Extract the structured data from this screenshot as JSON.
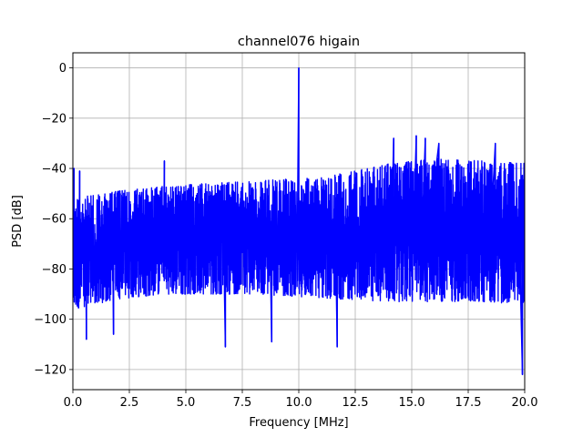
{
  "chart_data": {
    "type": "line",
    "title": "channel076 higain",
    "xlabel": "Frequency [MHz]",
    "ylabel": "PSD [dB]",
    "xlim": [
      0,
      20
    ],
    "ylim": [
      -128,
      6
    ],
    "xticks": [
      0,
      2.5,
      5,
      7.5,
      10,
      12.5,
      15,
      17.5,
      20
    ],
    "xtick_labels": [
      "0.0",
      "2.5",
      "5.0",
      "7.5",
      "10.0",
      "12.5",
      "15.0",
      "17.5",
      "20.0"
    ],
    "yticks": [
      0,
      -20,
      -40,
      -60,
      -80,
      -100,
      -120
    ],
    "ytick_labels": [
      "0",
      "−20",
      "−40",
      "−60",
      "−80",
      "−100",
      "−120"
    ],
    "grid": true,
    "color": "#0000ff",
    "series": [
      {
        "frequency_mhz": [
          0,
          2,
          4,
          6,
          8,
          10,
          12,
          14,
          16,
          18,
          20
        ],
        "upper_envelope_db": [
          -52,
          -49,
          -47,
          -46,
          -45,
          -44,
          -42,
          -38,
          -36,
          -37,
          -38
        ],
        "lower_envelope_db": [
          -96,
          -92,
          -90,
          -90,
          -90,
          -91,
          -92,
          -93,
          -93,
          -93,
          -94
        ],
        "noise_floor_db": [
          -75,
          -73,
          -72,
          -72,
          -71,
          -70,
          -70,
          -69,
          -68,
          -69,
          -69
        ]
      }
    ],
    "peaks": [
      {
        "x": 0.05,
        "y": -40
      },
      {
        "x": 0.3,
        "y": -41
      },
      {
        "x": 0.6,
        "y": -108
      },
      {
        "x": 1.8,
        "y": -106
      },
      {
        "x": 4.05,
        "y": -37
      },
      {
        "x": 6.75,
        "y": -111
      },
      {
        "x": 8.8,
        "y": -109
      },
      {
        "x": 10.0,
        "y": 0
      },
      {
        "x": 11.7,
        "y": -111
      },
      {
        "x": 14.2,
        "y": -28
      },
      {
        "x": 15.2,
        "y": -27
      },
      {
        "x": 15.6,
        "y": -28
      },
      {
        "x": 16.2,
        "y": -30
      },
      {
        "x": 18.7,
        "y": -30
      },
      {
        "x": 19.9,
        "y": -122
      }
    ]
  }
}
